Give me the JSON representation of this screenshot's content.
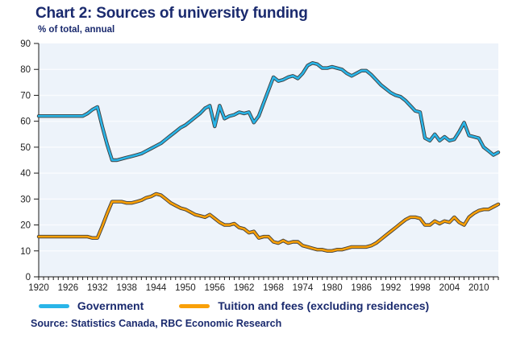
{
  "header": {
    "title": "Chart 2: Sources of university funding",
    "subtitle": "% of total, annual"
  },
  "source_note": "Source: Statistics Canada, RBC Economic Research",
  "colors": {
    "navy_text": "#1a2a6e",
    "government_line": "#29b5e8",
    "tuition_line": "#f9a008",
    "line_outline": "#3d3d3d",
    "plot_background": "#edf3fa",
    "gridline": "#f9fbfe",
    "axis": "#1a1a1a",
    "tick_label": "#1f1f1f"
  },
  "chart_data": {
    "type": "line",
    "title": "Chart 2: Sources of university funding",
    "subtitle": "% of total, annual",
    "ylim": [
      0,
      90
    ],
    "y_ticks": [
      0,
      10,
      20,
      30,
      40,
      50,
      60,
      70,
      80,
      90
    ],
    "x_tick_labels": [
      "1920",
      "1926",
      "1932",
      "1938",
      "1944",
      "1950",
      "1956",
      "1962",
      "1968",
      "1974",
      "1980",
      "1986",
      "1992",
      "1998",
      "2004",
      "2010"
    ],
    "x_range": [
      1920,
      2014
    ],
    "grid": "horizontal white gridlines on light blue plot area",
    "legend_position": "bottom",
    "x": [
      1920,
      1921,
      1922,
      1923,
      1924,
      1925,
      1926,
      1927,
      1928,
      1929,
      1930,
      1931,
      1932,
      1933,
      1934,
      1935,
      1936,
      1937,
      1938,
      1939,
      1940,
      1941,
      1942,
      1943,
      1944,
      1945,
      1946,
      1947,
      1948,
      1949,
      1950,
      1951,
      1952,
      1953,
      1954,
      1955,
      1956,
      1957,
      1958,
      1959,
      1960,
      1961,
      1962,
      1963,
      1964,
      1965,
      1966,
      1967,
      1968,
      1969,
      1970,
      1971,
      1972,
      1973,
      1974,
      1975,
      1976,
      1977,
      1978,
      1979,
      1980,
      1981,
      1982,
      1983,
      1984,
      1985,
      1986,
      1987,
      1988,
      1989,
      1990,
      1991,
      1992,
      1993,
      1994,
      1995,
      1996,
      1997,
      1998,
      1999,
      2000,
      2001,
      2002,
      2003,
      2004,
      2005,
      2006,
      2007,
      2008,
      2009,
      2010,
      2011,
      2012,
      2013,
      2014
    ],
    "series": [
      {
        "name": "Government",
        "color": "#29b5e8",
        "values": [
          62,
          62,
          62,
          62,
          62,
          62,
          62,
          62,
          62,
          62,
          63,
          64.5,
          65.5,
          58,
          51,
          45,
          45,
          45.5,
          46,
          46.5,
          47,
          47.5,
          48.5,
          49.5,
          50.5,
          51.5,
          53,
          54.5,
          56,
          57.5,
          58.5,
          60,
          61.5,
          63,
          65,
          66,
          58,
          66,
          61,
          62,
          62.5,
          63.5,
          63,
          63.5,
          59.5,
          62,
          67,
          72,
          77,
          75.5,
          76,
          77,
          77.5,
          76.5,
          78.5,
          81.5,
          82.5,
          82,
          80.5,
          80.5,
          81,
          80.5,
          80,
          78.5,
          77.5,
          78.5,
          79.5,
          79.5,
          78,
          76,
          74,
          72.5,
          71,
          70,
          69.5,
          68,
          66,
          64,
          63.5,
          53.5,
          52.5,
          55,
          52.5,
          54,
          52.5,
          53,
          56,
          59.5,
          54.5,
          54,
          53.5,
          50,
          48.5,
          47,
          48
        ]
      },
      {
        "name": "Tuition and fees (excluding residences)",
        "color": "#f9a008",
        "values": [
          15.5,
          15.5,
          15.5,
          15.5,
          15.5,
          15.5,
          15.5,
          15.5,
          15.5,
          15.5,
          15.5,
          15,
          15,
          19.5,
          24.5,
          29,
          29,
          29,
          28.5,
          28.5,
          29,
          29.5,
          30.5,
          31,
          32,
          31.5,
          30,
          28.5,
          27.5,
          26.5,
          26,
          25,
          24,
          23.5,
          23,
          24,
          22.5,
          21,
          20,
          20,
          20.5,
          19,
          18.5,
          17,
          17.5,
          15,
          15.5,
          15.5,
          13.5,
          13,
          14,
          13,
          13.5,
          13.5,
          12,
          11.5,
          11,
          10.5,
          10.5,
          10,
          10,
          10.5,
          10.5,
          11,
          11.5,
          11.5,
          11.5,
          11.5,
          12,
          13,
          14.5,
          16,
          17.5,
          19,
          20.5,
          22,
          23,
          23,
          22.5,
          20,
          20,
          21.5,
          20.5,
          21.5,
          21,
          23,
          21,
          20,
          23,
          24.5,
          25.5,
          26,
          26,
          27,
          28
        ]
      }
    ]
  }
}
